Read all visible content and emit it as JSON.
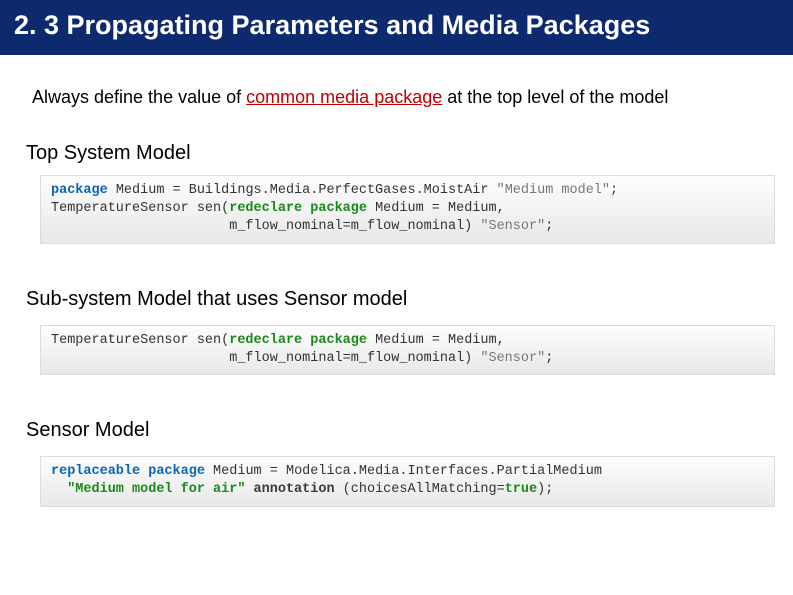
{
  "slide": {
    "title": "2. 3 Propagating Parameters and Media Packages",
    "intro_prefix": "Always define the value of ",
    "intro_highlight": "common media package",
    "intro_suffix": " at the top level of the model",
    "section_top": "Top System Model",
    "section_sub": "Sub-system Model that uses Sensor model",
    "section_sensor": "Sensor Model"
  },
  "code": {
    "top": {
      "l1": {
        "kw1": "package",
        "rest1": " Medium = Buildings.Media.PerfectGases.MoistAir ",
        "str1": "\"Medium model\"",
        "semi1": ";"
      },
      "l2": {
        "type": "TemperatureSensor sen(",
        "kw2a": "redeclare",
        "sp": " ",
        "kw2b": "package",
        "rest2": " Medium = Medium,"
      },
      "l3": {
        "indent": "                      m_flow_nominal=m_flow_nominal) ",
        "str2": "\"Sensor\"",
        "semi2": ";"
      }
    },
    "sub": {
      "l1": {
        "type": "TemperatureSensor sen(",
        "kw1a": "redeclare",
        "sp": " ",
        "kw1b": "package",
        "rest1": " Medium = Medium,"
      },
      "l2": {
        "indent": "                      m_flow_nominal=m_flow_nominal) ",
        "str1": "\"Sensor\"",
        "semi1": ";"
      }
    },
    "sensor": {
      "l1": {
        "kw1a": "replaceable",
        "sp1": " ",
        "kw1b": "package",
        "rest1": " Medium = Modelica.Media.Interfaces.PartialMedium"
      },
      "l2": {
        "indent": "  ",
        "str1": "\"Medium model for air\"",
        "sp2": " ",
        "kw2": "annotation",
        "rest2": " (choicesAllMatching=",
        "kw3": "true",
        "rest3": ");"
      }
    }
  },
  "colors": {
    "title_bg": "#0d2a6e",
    "title_fg": "#ffffff",
    "highlight": "#c00000",
    "kw_blue": "#0a66b5",
    "kw_green": "#1a8a1a",
    "code_bg_top": "#fdfdfd",
    "code_bg_bottom": "#e8e8e8",
    "code_border": "#dcdcdc",
    "string_color": "#777777",
    "text_color": "#333333"
  },
  "typography": {
    "title_fontsize": 27,
    "intro_fontsize": 18,
    "section_fontsize": 20,
    "code_fontsize": 13.5,
    "code_family": "Courier New"
  }
}
